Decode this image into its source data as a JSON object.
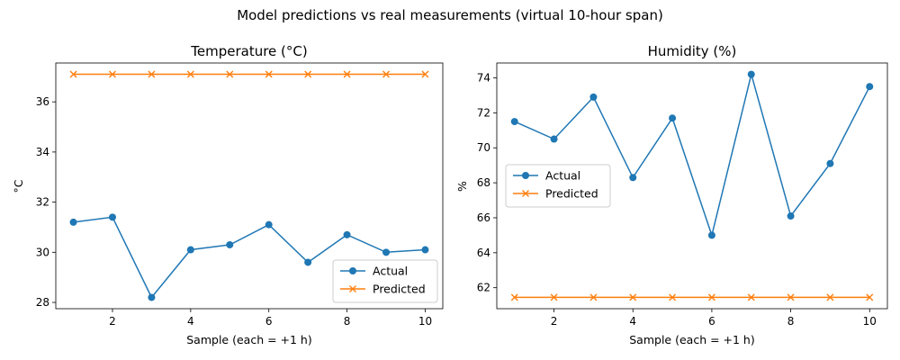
{
  "figure": {
    "suptitle": "Model predictions vs real measurements (virtual 10-hour span)"
  },
  "chart_data": [
    {
      "type": "line",
      "title": "Temperature (°C)",
      "xlabel": "Sample (each = +1 h)",
      "ylabel": "°C",
      "x": [
        1,
        2,
        3,
        4,
        5,
        6,
        7,
        8,
        9,
        10
      ],
      "xlim": [
        0.55,
        10.45
      ],
      "ylim": [
        27.75,
        37.55
      ],
      "xticks": [
        2,
        4,
        6,
        8,
        10
      ],
      "yticks": [
        28,
        30,
        32,
        34,
        36
      ],
      "legend": "lower-right",
      "grid": false,
      "series": [
        {
          "name": "Actual",
          "marker": "circle",
          "color": "#1f77b4",
          "values": [
            31.2,
            31.4,
            28.2,
            30.1,
            30.3,
            31.1,
            29.6,
            30.7,
            30.0,
            30.1
          ]
        },
        {
          "name": "Predicted",
          "marker": "x",
          "color": "#ff7f0e",
          "values": [
            37.1,
            37.1,
            37.1,
            37.1,
            37.1,
            37.1,
            37.1,
            37.1,
            37.1,
            37.1
          ]
        }
      ]
    },
    {
      "type": "line",
      "title": "Humidity (%)",
      "xlabel": "Sample (each = +1 h)",
      "ylabel": "%",
      "x": [
        1,
        2,
        3,
        4,
        5,
        6,
        7,
        8,
        9,
        10
      ],
      "xlim": [
        0.55,
        10.45
      ],
      "ylim": [
        60.8,
        74.85
      ],
      "xticks": [
        2,
        4,
        6,
        8,
        10
      ],
      "yticks": [
        62,
        64,
        66,
        68,
        70,
        72,
        74
      ],
      "legend": "center-left",
      "grid": false,
      "series": [
        {
          "name": "Actual",
          "marker": "circle",
          "color": "#1f77b4",
          "values": [
            71.5,
            70.5,
            72.9,
            68.3,
            71.7,
            65.0,
            74.2,
            66.1,
            69.1,
            73.5
          ]
        },
        {
          "name": "Predicted",
          "marker": "x",
          "color": "#ff7f0e",
          "values": [
            61.45,
            61.45,
            61.45,
            61.45,
            61.45,
            61.45,
            61.45,
            61.45,
            61.45,
            61.45
          ]
        }
      ]
    }
  ]
}
